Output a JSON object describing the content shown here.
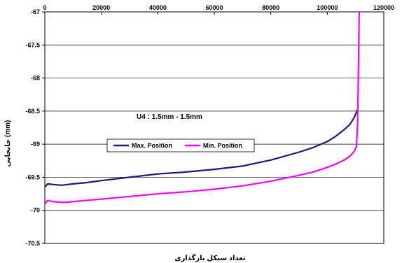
{
  "chart_data": {
    "type": "line",
    "title": "",
    "xlabel": "تعداد سیکل بارگذاری",
    "ylabel": "جابجایی   (mm)",
    "xlim": [
      0,
      120000
    ],
    "ylim": [
      -70.5,
      -67
    ],
    "x_ticks": [
      0,
      20000,
      40000,
      60000,
      80000,
      100000,
      120000
    ],
    "y_ticks": [
      -67,
      -67.5,
      -68,
      -68.5,
      -69,
      -69.5,
      -70,
      -70.5
    ],
    "x_tick_labels": [
      "0",
      "20000",
      "40000",
      "60000",
      "80000",
      "100000",
      "120000"
    ],
    "y_tick_labels": [
      "-67",
      "-67.5",
      "-68",
      "-68.5",
      "-69",
      "-69.5",
      "-70",
      "-70.5"
    ],
    "grid": "horizontal",
    "annotation": "U4 : 1.5mm - 1.5mm",
    "legend_position": "center-left",
    "series": [
      {
        "name": "Max. Position",
        "color": "#1a1a7a",
        "x": [
          0,
          1000,
          3000,
          6000,
          10000,
          15000,
          20000,
          30000,
          40000,
          50000,
          60000,
          70000,
          80000,
          90000,
          95000,
          100000,
          103000,
          106000,
          108000,
          109500,
          110300,
          110600
        ],
        "y": [
          -69.65,
          -69.6,
          -69.61,
          -69.62,
          -69.6,
          -69.58,
          -69.55,
          -69.5,
          -69.45,
          -69.42,
          -69.38,
          -69.33,
          -69.24,
          -69.12,
          -69.05,
          -68.96,
          -68.88,
          -68.78,
          -68.7,
          -68.6,
          -68.52,
          -68.48
        ]
      },
      {
        "name": "Min. Position",
        "color": "#ff00ff",
        "x": [
          0,
          1000,
          3000,
          7000,
          12000,
          20000,
          30000,
          40000,
          50000,
          60000,
          70000,
          80000,
          90000,
          95000,
          100000,
          103000,
          106000,
          108000,
          109500,
          110300,
          110700,
          110900,
          111100,
          111300
        ],
        "y": [
          -69.9,
          -69.85,
          -69.87,
          -69.88,
          -69.86,
          -69.83,
          -69.79,
          -69.75,
          -69.72,
          -69.68,
          -69.63,
          -69.56,
          -69.47,
          -69.42,
          -69.35,
          -69.3,
          -69.24,
          -69.18,
          -69.11,
          -69.04,
          -68.7,
          -68.2,
          -67.6,
          -67.0
        ]
      }
    ]
  }
}
